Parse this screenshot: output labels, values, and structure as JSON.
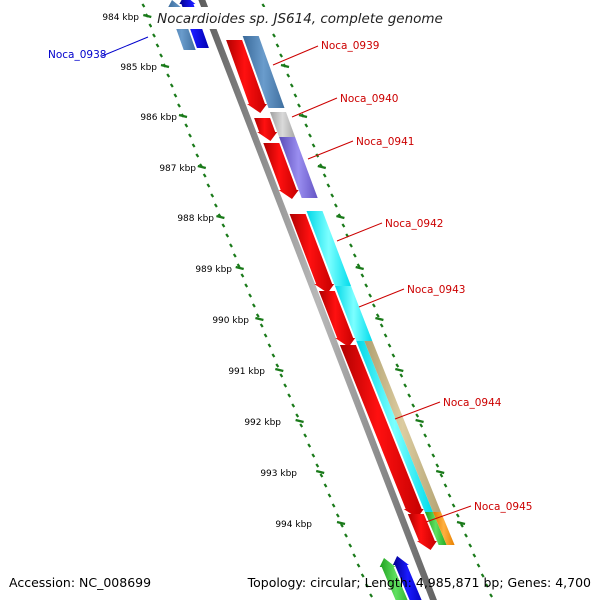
{
  "title": "Nocardioides sp. JS614, complete genome",
  "kbp_labels": [
    "984 kbp",
    "985 kbp",
    "986 kbp",
    "987 kbp",
    "988 kbp",
    "989 kbp",
    "990 kbp",
    "991 kbp",
    "992 kbp",
    "993 kbp",
    "994 kbp"
  ],
  "genes": [
    {
      "name": "Noca_0938",
      "color": "#0000cc",
      "strand": "reverse"
    },
    {
      "name": "Noca_0939",
      "color": "#cc0000",
      "strand": "forward"
    },
    {
      "name": "Noca_0940",
      "color": "#cc0000",
      "strand": "forward"
    },
    {
      "name": "Noca_0941",
      "color": "#cc0000",
      "strand": "forward"
    },
    {
      "name": "Noca_0942",
      "color": "#cc0000",
      "strand": "forward"
    },
    {
      "name": "Noca_0943",
      "color": "#cc0000",
      "strand": "forward"
    },
    {
      "name": "Noca_0944",
      "color": "#cc0000",
      "strand": "forward"
    },
    {
      "name": "Noca_0945",
      "color": "#cc0000",
      "strand": "forward"
    }
  ],
  "footer": {
    "accession": "Accession: NC_008699",
    "topology": "Topology: circular; Length: 4,985,871 bp; Genes: 4,700"
  }
}
